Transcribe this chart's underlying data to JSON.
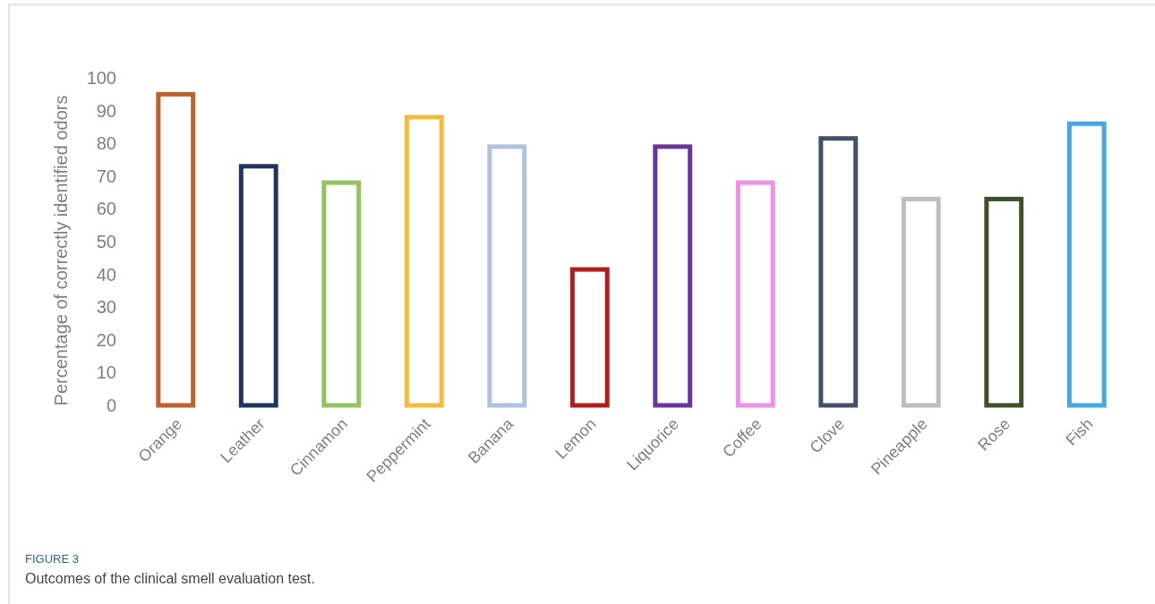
{
  "chart_data": {
    "type": "bar",
    "ylabel": "Percentage of correctly identified odors",
    "categories": [
      "Orange",
      "Leather",
      "Cinnamon",
      "Peppermint",
      "Banana",
      "Lemon",
      "Liquorice",
      "Coffee",
      "Clove",
      "Pineapple",
      "Rose",
      "Fish"
    ],
    "values": [
      95,
      73,
      68,
      88,
      79,
      41.5,
      79,
      68,
      81.5,
      63,
      63,
      86
    ],
    "colors": [
      "#c0602a",
      "#1f3461",
      "#92c45e",
      "#f5bc3a",
      "#aec3e2",
      "#b41c1c",
      "#6a34a0",
      "#ee8fe8",
      "#435069",
      "#bdbdbd",
      "#3c5226",
      "#45a8e6"
    ],
    "ylim": [
      0,
      100
    ],
    "yticks": [
      0,
      10,
      20,
      30,
      40,
      50,
      60,
      70,
      80,
      90,
      100
    ],
    "grid": false,
    "annotations": [
      "FIGURE 3",
      "Outcomes of the clinical smell evaluation test."
    ]
  }
}
